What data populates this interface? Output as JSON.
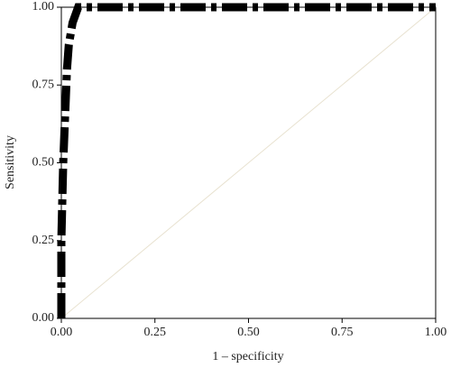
{
  "chart_data": {
    "type": "line",
    "xlabel": "1 – specificity",
    "ylabel": "Sensitivity",
    "xlim": [
      0,
      1
    ],
    "ylim": [
      0,
      1
    ],
    "xticks": [
      {
        "value": 0,
        "label": "0.00"
      },
      {
        "value": 0.25,
        "label": "0.25"
      },
      {
        "value": 0.5,
        "label": "0.50"
      },
      {
        "value": 0.75,
        "label": "0.75"
      },
      {
        "value": 1,
        "label": "1.00"
      }
    ],
    "yticks": [
      {
        "value": 0,
        "label": "0.00"
      },
      {
        "value": 0.25,
        "label": "0.25"
      },
      {
        "value": 0.5,
        "label": "0.50"
      },
      {
        "value": 0.75,
        "label": "0.75"
      },
      {
        "value": 1,
        "label": "1.00"
      }
    ],
    "series": [
      {
        "color": "#e8e2d0",
        "style": "solid",
        "width": 1,
        "x": [
          0,
          1
        ],
        "values": [
          0,
          1
        ]
      },
      {
        "color": "#000000",
        "style": "dashdot",
        "width": 9,
        "x": [
          0,
          0,
          0.005,
          0.01,
          0.015,
          0.02,
          0.03,
          0.045,
          1
        ],
        "values": [
          0,
          0.25,
          0.5,
          0.65,
          0.8,
          0.88,
          0.95,
          1,
          1
        ]
      }
    ]
  }
}
